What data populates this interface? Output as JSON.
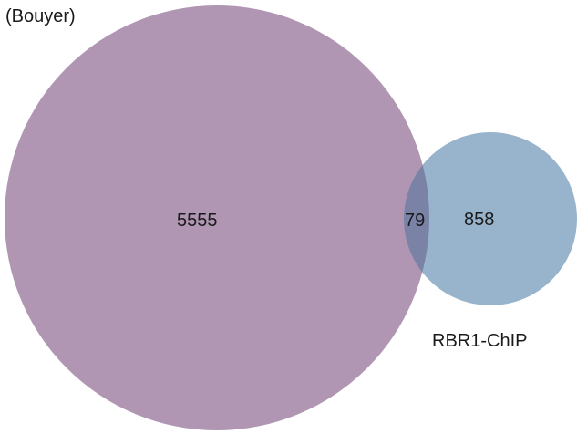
{
  "venn": {
    "set_a": {
      "label": "(Bouyer)",
      "only_count": "5555",
      "color": "#b096b3"
    },
    "set_b": {
      "label": "RBR1-ChIP",
      "only_count": "858",
      "color": "#98b4cc"
    },
    "intersection": {
      "count": "79",
      "color": "#7a82a6"
    }
  }
}
